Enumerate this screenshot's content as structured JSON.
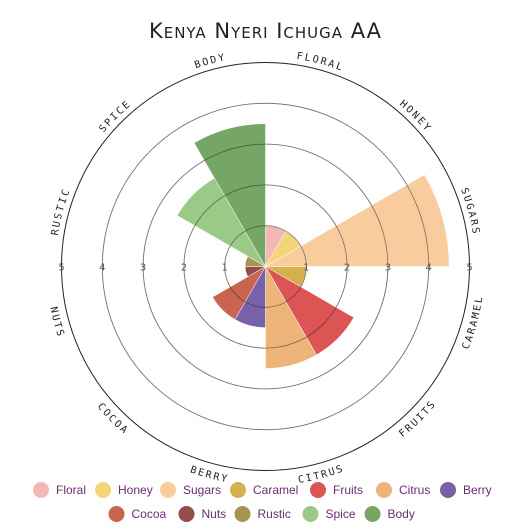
{
  "chart_data": {
    "type": "polar-area",
    "title": "Kenya Nyeri Ichuga AA",
    "rmax": 5,
    "ticks": [
      "1",
      "2",
      "3",
      "4",
      "5"
    ],
    "categories": [
      "Floral",
      "Honey",
      "Sugars",
      "Caramel",
      "Fruits",
      "Citrus",
      "Berry",
      "Cocoa",
      "Nuts",
      "Rustic",
      "Spice",
      "Body"
    ],
    "labels": [
      "FLORAL",
      "HONEY",
      "SUGARS",
      "CARAMEL",
      "FRUITS",
      "CITRUS",
      "BERRY",
      "COCOA",
      "NUTS",
      "RUSTIC",
      "SPICE",
      "BODY"
    ],
    "values": [
      1,
      1,
      4.5,
      1,
      2.5,
      2.5,
      1.5,
      1.5,
      0.5,
      0.5,
      2.5,
      3.5
    ],
    "colors": [
      "#f2b1b0",
      "#f2d16b",
      "#f7c895",
      "#d1aa3e",
      "#d94646",
      "#ebae6e",
      "#6b55a3",
      "#c25840",
      "#8b3e38",
      "#9c8c42",
      "#93c47d",
      "#6a9e58"
    ],
    "grid": true,
    "legend": "bottom"
  }
}
